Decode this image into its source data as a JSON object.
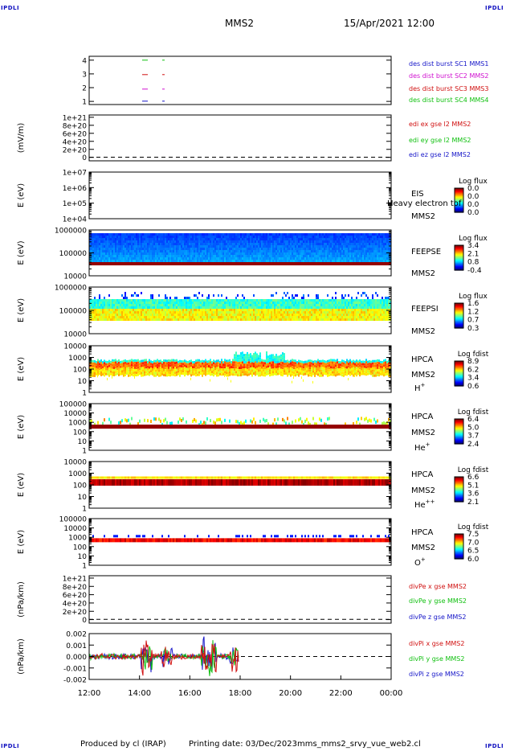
{
  "header": {
    "mission": "MMS2",
    "datetime": "15/Apr/2021 12:00"
  },
  "corners": {
    "tl": "IPDLI",
    "tr": "IPDLI",
    "bl": "IPDLI",
    "br": "IPDLI"
  },
  "footer": {
    "produced_by": "Produced by cl (IRAP)",
    "printing_date": "Printing date: 03/Dec/2023",
    "filename": "mms_mms2_srvy_vue_web2.cl"
  },
  "colors": {
    "mms1": "#1515c8",
    "mms2": "#d010d0",
    "mms3": "#d01010",
    "mms4": "#10c010",
    "x": "#d01010",
    "y": "#10c010",
    "z": "#1515c8"
  },
  "chart_data": [
    {
      "id": "p1",
      "type": "scatter",
      "yticks": [
        "4",
        "3",
        "2",
        "1"
      ],
      "legend": [
        {
          "label": "des dist burst SC1 MMS1",
          "color": "#1515c8"
        },
        {
          "label": "des dist burst SC2 MMS2",
          "color": "#d010d0"
        },
        {
          "label": "des dist burst SC3 MMS3",
          "color": "#d01010"
        },
        {
          "label": "des dist burst SC4 MMS4",
          "color": "#10c010"
        }
      ]
    },
    {
      "id": "p2",
      "type": "line",
      "ylabel": "(mV/m)",
      "yticks": [
        "1e+21",
        "8e+20",
        "6e+20",
        "4e+20",
        "2e+20",
        "0"
      ],
      "legend": [
        {
          "label": "edi ex gse l2 MMS2",
          "color": "#d01010"
        },
        {
          "label": "edi ey gse l2 MMS2",
          "color": "#10c010"
        },
        {
          "label": "edi ez gse l2 MMS2",
          "color": "#1515c8"
        }
      ]
    },
    {
      "id": "p3",
      "type": "heatmap",
      "ylabel": "E (eV)",
      "yticks": [
        "1e+07",
        "1e+06",
        "1e+05",
        "1e+04"
      ],
      "instrument": "EIS",
      "sc": "MMS2",
      "overlay": "Heavy electron tof",
      "cbar_title": "Log flux",
      "cbar_ticks": [
        "0.0",
        "0.0",
        "0.0",
        "0.0"
      ]
    },
    {
      "id": "p4",
      "type": "heatmap",
      "ylabel": "E (eV)",
      "yticks": [
        "1000000",
        "100000",
        "10000"
      ],
      "instrument": "FEEPSE",
      "sc": "MMS2",
      "cbar_title": "Log flux",
      "cbar_ticks": [
        "3.4",
        "2.1",
        "0.8",
        "-0.4"
      ]
    },
    {
      "id": "p5",
      "type": "heatmap",
      "ylabel": "E (eV)",
      "yticks": [
        "1000000",
        "100000",
        "10000"
      ],
      "instrument": "FEEPSI",
      "sc": "MMS2",
      "cbar_title": "Log flux",
      "cbar_ticks": [
        "1.6",
        "1.2",
        "0.7",
        "0.3"
      ]
    },
    {
      "id": "p6",
      "type": "heatmap",
      "ylabel": "E (eV)",
      "yticks": [
        "10000",
        "1000",
        "100",
        "10",
        "1"
      ],
      "instrument": "HPCA",
      "sc": "MMS2",
      "species": "H",
      "charge": "+",
      "cbar_title": "Log fdist",
      "cbar_ticks": [
        "8.9",
        "6.2",
        "3.4",
        "0.6"
      ]
    },
    {
      "id": "p7",
      "type": "heatmap",
      "ylabel": "E (eV)",
      "yticks": [
        "100000",
        "10000",
        "1000",
        "100",
        "10",
        "1"
      ],
      "instrument": "HPCA",
      "sc": "MMS2",
      "species": "He",
      "charge": "+",
      "cbar_title": "Log fdist",
      "cbar_ticks": [
        "6.4",
        "5.0",
        "3.7",
        "2.4"
      ]
    },
    {
      "id": "p8",
      "type": "heatmap",
      "ylabel": "E (eV)",
      "yticks": [
        "10000",
        "1000",
        "100",
        "10",
        "1"
      ],
      "instrument": "HPCA",
      "sc": "MMS2",
      "species": "He",
      "charge": "++",
      "cbar_title": "Log fdist",
      "cbar_ticks": [
        "6.6",
        "5.1",
        "3.6",
        "2.1"
      ]
    },
    {
      "id": "p9",
      "type": "heatmap",
      "ylabel": "E (eV)",
      "yticks": [
        "100000",
        "10000",
        "1000",
        "100",
        "10",
        "1"
      ],
      "instrument": "HPCA",
      "sc": "MMS2",
      "species": "O",
      "charge": "+",
      "cbar_title": "Log fdist",
      "cbar_ticks": [
        "7.5",
        "7.0",
        "6.5",
        "6.0"
      ]
    },
    {
      "id": "p10",
      "type": "line",
      "ylabel": "(nPa/km)",
      "yticks": [
        "1e+21",
        "8e+20",
        "6e+20",
        "4e+20",
        "2e+20",
        "0"
      ],
      "legend": [
        {
          "label": "divPe x gse MMS2",
          "color": "#d01010"
        },
        {
          "label": "divPe y gse MMS2",
          "color": "#10c010"
        },
        {
          "label": "divPe z gse MMS2",
          "color": "#1515c8"
        }
      ]
    },
    {
      "id": "p11",
      "type": "line",
      "ylabel": "(nPa/km)",
      "yticks": [
        "0.002",
        "0.001",
        "0.000",
        "-0.001",
        "-0.002"
      ],
      "legend": [
        {
          "label": "divPi x gse MMS2",
          "color": "#d01010"
        },
        {
          "label": "divPi y gse MMS2",
          "color": "#10c010"
        },
        {
          "label": "divPi z gse MMS2",
          "color": "#1515c8"
        }
      ]
    }
  ],
  "xaxis": {
    "ticks": [
      "12:00",
      "14:00",
      "16:00",
      "18:00",
      "20:00",
      "22:00",
      "00:00"
    ]
  }
}
